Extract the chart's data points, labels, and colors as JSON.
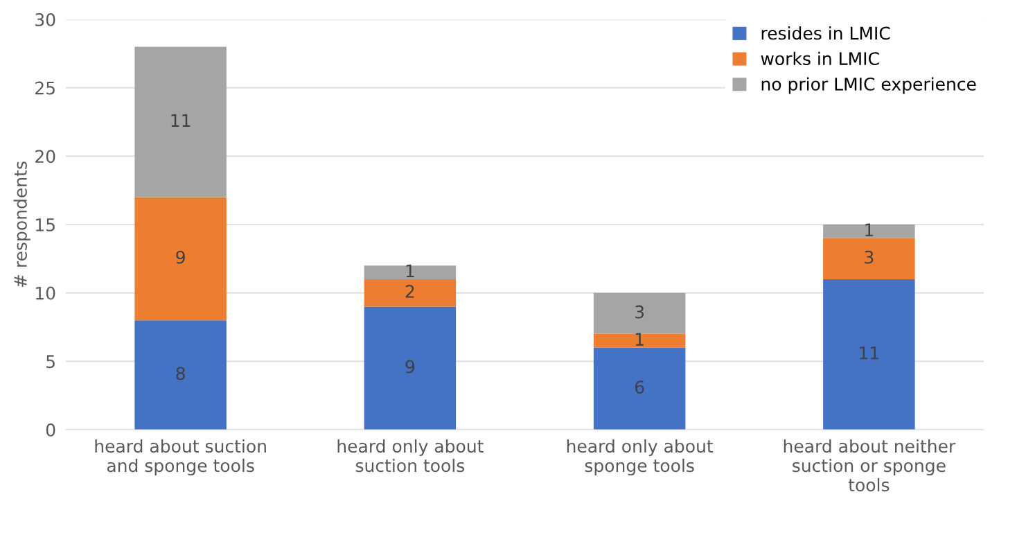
{
  "chart_data": {
    "type": "bar",
    "stacked": true,
    "ylabel": "# respondents",
    "categories": [
      "heard about suction\nand sponge tools",
      "heard only about\nsuction tools",
      "heard only about\nsponge tools",
      "heard about neither\nsuction or sponge\ntools"
    ],
    "series": [
      {
        "name": "resides in LMIC",
        "color": "#4472c4",
        "values": [
          8,
          9,
          6,
          11
        ]
      },
      {
        "name": "works in LMIC",
        "color": "#ed7d31",
        "values": [
          9,
          2,
          1,
          3
        ]
      },
      {
        "name": "no prior LMIC experience",
        "color": "#a5a5a5",
        "values": [
          11,
          1,
          3,
          1
        ]
      }
    ],
    "ylim": [
      0,
      30
    ],
    "yticks": [
      0,
      5,
      10,
      15,
      20,
      25,
      30
    ],
    "grid": "y",
    "legend": "top right",
    "data_labels": true
  }
}
